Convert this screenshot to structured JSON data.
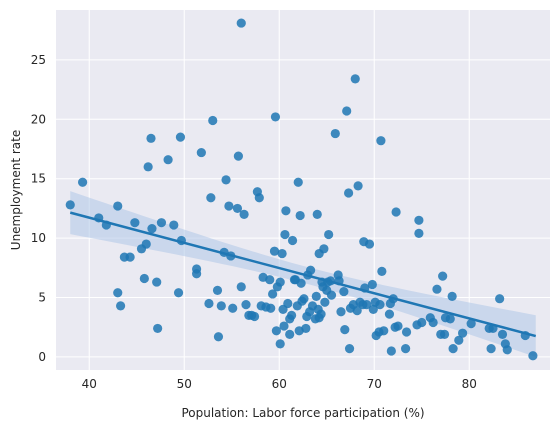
{
  "chart_data": {
    "type": "scatter",
    "title": "",
    "xlabel": "Population: Labor force participation (%)",
    "ylabel": "Unemployment rate",
    "xlim": [
      36.5,
      88.5
    ],
    "ylim": [
      -1.1,
      29.2
    ],
    "xticks": [
      40,
      50,
      60,
      70,
      80
    ],
    "yticks": [
      0,
      5,
      10,
      15,
      20,
      25
    ],
    "grid": true,
    "background": "#eaeaf2",
    "point_color": "#1f77b4",
    "regression": {
      "slope": -0.212,
      "intercept": 20.2,
      "x_range": [
        38,
        87
      ],
      "ci_color": "#aec7e8"
    },
    "points": [
      [
        38.0,
        12.8
      ],
      [
        39.3,
        14.7
      ],
      [
        41.0,
        11.7
      ],
      [
        41.8,
        11.1
      ],
      [
        43.0,
        12.7
      ],
      [
        43.0,
        5.4
      ],
      [
        43.3,
        4.3
      ],
      [
        43.7,
        8.4
      ],
      [
        44.3,
        8.4
      ],
      [
        44.8,
        11.3
      ],
      [
        45.5,
        9.1
      ],
      [
        45.8,
        6.6
      ],
      [
        46.0,
        9.5
      ],
      [
        46.2,
        16.0
      ],
      [
        46.5,
        18.4
      ],
      [
        46.6,
        10.8
      ],
      [
        47.1,
        6.3
      ],
      [
        47.2,
        2.4
      ],
      [
        47.6,
        11.3
      ],
      [
        48.3,
        16.6
      ],
      [
        48.9,
        11.1
      ],
      [
        49.4,
        5.4
      ],
      [
        49.6,
        18.5
      ],
      [
        49.7,
        9.8
      ],
      [
        51.3,
        7.4
      ],
      [
        51.3,
        7.0
      ],
      [
        51.8,
        17.2
      ],
      [
        52.6,
        4.5
      ],
      [
        52.8,
        13.4
      ],
      [
        53.0,
        19.9
      ],
      [
        53.5,
        5.6
      ],
      [
        53.6,
        1.7
      ],
      [
        53.9,
        4.3
      ],
      [
        54.2,
        8.8
      ],
      [
        54.4,
        14.9
      ],
      [
        54.7,
        12.7
      ],
      [
        54.9,
        8.5
      ],
      [
        55.1,
        4.1
      ],
      [
        55.6,
        12.5
      ],
      [
        55.7,
        16.9
      ],
      [
        56.0,
        5.9
      ],
      [
        56.0,
        28.1
      ],
      [
        56.3,
        12.0
      ],
      [
        56.5,
        4.4
      ],
      [
        56.8,
        3.5
      ],
      [
        57.1,
        3.5
      ],
      [
        57.4,
        3.4
      ],
      [
        57.7,
        13.9
      ],
      [
        57.9,
        13.4
      ],
      [
        58.1,
        4.3
      ],
      [
        58.3,
        6.7
      ],
      [
        58.6,
        4.2
      ],
      [
        59.0,
        6.5
      ],
      [
        59.1,
        4.1
      ],
      [
        59.3,
        5.3
      ],
      [
        59.5,
        8.9
      ],
      [
        59.6,
        20.2
      ],
      [
        59.7,
        2.2
      ],
      [
        59.8,
        5.9
      ],
      [
        60.1,
        6.3
      ],
      [
        60.3,
        8.7
      ],
      [
        60.1,
        1.1
      ],
      [
        60.4,
        4.0
      ],
      [
        60.5,
        2.6
      ],
      [
        60.6,
        10.3
      ],
      [
        60.7,
        12.3
      ],
      [
        60.9,
        4.5
      ],
      [
        61.1,
        1.9
      ],
      [
        61.1,
        3.2
      ],
      [
        61.3,
        3.5
      ],
      [
        61.4,
        9.8
      ],
      [
        61.6,
        6.5
      ],
      [
        61.7,
        6.5
      ],
      [
        61.9,
        4.3
      ],
      [
        62.0,
        14.7
      ],
      [
        62.1,
        2.2
      ],
      [
        62.2,
        11.9
      ],
      [
        62.3,
        6.2
      ],
      [
        62.4,
        4.7
      ],
      [
        62.6,
        4.9
      ],
      [
        62.8,
        2.4
      ],
      [
        62.9,
        3.4
      ],
      [
        63.0,
        6.9
      ],
      [
        63.2,
        3.8
      ],
      [
        63.3,
        7.3
      ],
      [
        63.5,
        4.3
      ],
      [
        63.8,
        3.2
      ],
      [
        63.9,
        5.1
      ],
      [
        64.0,
        12.0
      ],
      [
        64.1,
        4.0
      ],
      [
        64.2,
        3.3
      ],
      [
        64.2,
        8.7
      ],
      [
        64.4,
        3.6
      ],
      [
        64.5,
        6.3
      ],
      [
        64.6,
        5.9
      ],
      [
        64.7,
        9.1
      ],
      [
        64.8,
        4.6
      ],
      [
        65.0,
        5.6
      ],
      [
        65.1,
        6.3
      ],
      [
        65.2,
        10.3
      ],
      [
        65.4,
        6.4
      ],
      [
        65.5,
        5.2
      ],
      [
        65.9,
        18.8
      ],
      [
        66.2,
        6.9
      ],
      [
        66.3,
        6.4
      ],
      [
        66.5,
        3.8
      ],
      [
        66.8,
        5.5
      ],
      [
        66.9,
        2.3
      ],
      [
        67.1,
        20.7
      ],
      [
        67.3,
        13.8
      ],
      [
        67.4,
        0.7
      ],
      [
        67.5,
        4.1
      ],
      [
        67.8,
        4.4
      ],
      [
        68.0,
        23.4
      ],
      [
        68.2,
        3.9
      ],
      [
        68.3,
        14.4
      ],
      [
        68.5,
        4.6
      ],
      [
        68.8,
        4.4
      ],
      [
        68.9,
        9.7
      ],
      [
        69.0,
        5.8
      ],
      [
        69.2,
        4.4
      ],
      [
        69.5,
        9.5
      ],
      [
        69.8,
        6.1
      ],
      [
        69.9,
        4.0
      ],
      [
        70.1,
        4.6
      ],
      [
        70.2,
        1.8
      ],
      [
        70.5,
        2.1
      ],
      [
        70.6,
        4.4
      ],
      [
        70.7,
        18.2
      ],
      [
        70.8,
        7.2
      ],
      [
        71.0,
        2.2
      ],
      [
        71.6,
        3.6
      ],
      [
        71.7,
        4.5
      ],
      [
        71.8,
        0.5
      ],
      [
        72.0,
        4.9
      ],
      [
        72.2,
        2.5
      ],
      [
        72.3,
        12.2
      ],
      [
        72.5,
        2.6
      ],
      [
        73.3,
        0.7
      ],
      [
        73.4,
        2.1
      ],
      [
        74.5,
        2.7
      ],
      [
        74.7,
        11.5
      ],
      [
        74.7,
        10.4
      ],
      [
        75.0,
        2.9
      ],
      [
        75.9,
        3.3
      ],
      [
        76.2,
        2.9
      ],
      [
        76.6,
        5.7
      ],
      [
        77.0,
        1.9
      ],
      [
        77.2,
        6.8
      ],
      [
        77.4,
        1.9
      ],
      [
        77.5,
        3.3
      ],
      [
        78.0,
        3.2
      ],
      [
        78.2,
        5.1
      ],
      [
        78.3,
        0.7
      ],
      [
        78.9,
        1.4
      ],
      [
        79.3,
        2.0
      ],
      [
        80.2,
        2.8
      ],
      [
        82.1,
        2.4
      ],
      [
        82.3,
        0.7
      ],
      [
        82.5,
        2.4
      ],
      [
        83.2,
        4.9
      ],
      [
        83.5,
        1.9
      ],
      [
        83.8,
        1.1
      ],
      [
        84.0,
        0.6
      ],
      [
        85.9,
        1.8
      ],
      [
        86.7,
        0.1
      ]
    ]
  }
}
